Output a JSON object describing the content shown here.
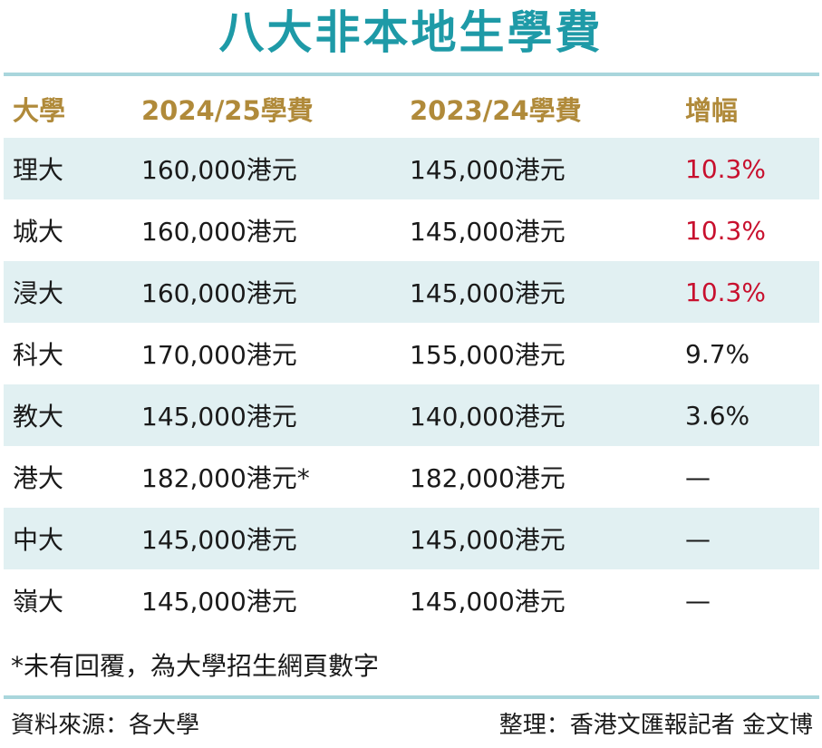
{
  "title": "八大非本地生學費",
  "table": {
    "headers": [
      "大學",
      "2024/25學費",
      "2023/24學費",
      "增幅"
    ],
    "rows": [
      {
        "university": "理大",
        "fee_2024_25": "160,000港元",
        "fee_2023_24": "145,000港元",
        "increase": "10.3%"
      },
      {
        "university": "城大",
        "fee_2024_25": "160,000港元",
        "fee_2023_24": "145,000港元",
        "increase": "10.3%"
      },
      {
        "university": "浸大",
        "fee_2024_25": "160,000港元",
        "fee_2023_24": "145,000港元",
        "increase": "10.3%"
      },
      {
        "university": "科大",
        "fee_2024_25": "170,000港元",
        "fee_2023_24": "155,000港元",
        "increase": "9.7%"
      },
      {
        "university": "教大",
        "fee_2024_25": "145,000港元",
        "fee_2023_24": "140,000港元",
        "increase": "3.6%"
      },
      {
        "university": "港大",
        "fee_2024_25": "182,000港元*",
        "fee_2023_24": "182,000港元",
        "increase": "—"
      },
      {
        "university": "中大",
        "fee_2024_25": "145,000港元",
        "fee_2023_24": "145,000港元",
        "increase": "—"
      },
      {
        "university": "嶺大",
        "fee_2024_25": "145,000港元",
        "fee_2023_24": "145,000港元",
        "increase": "—"
      }
    ]
  },
  "footnote": "*未有回覆，為大學招生網頁數字",
  "source": "資料來源：各大學",
  "credit": "整理：香港文匯報記者 金文博",
  "colors": {
    "title": "#1e9aa7",
    "header_text": "#b08a3a",
    "row_shade": "#e1f0f2",
    "rule": "#a9d6dc",
    "highlight_increase": "#c8102e"
  }
}
